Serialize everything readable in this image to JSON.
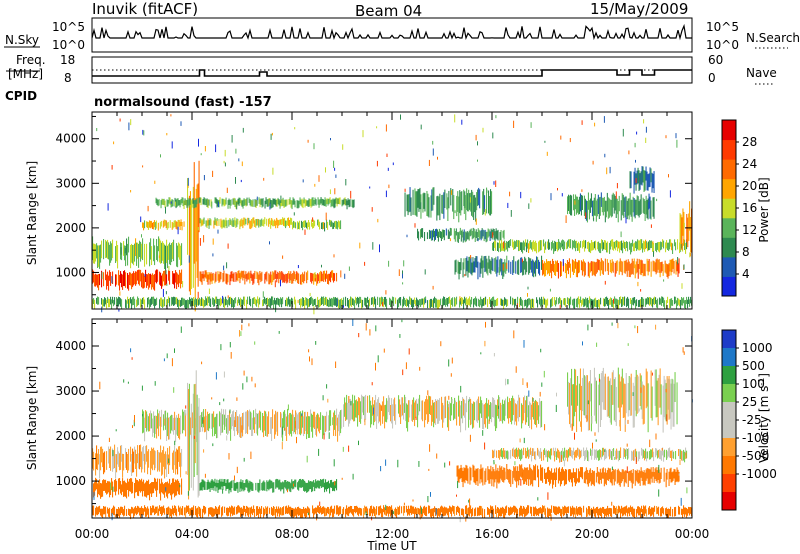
{
  "header": {
    "station": "Inuvik (fitACF)",
    "beam": "Beam 04",
    "date": "15/May/2009"
  },
  "top_panel": {
    "left_label": "N.Sky",
    "right_label": "N.Search",
    "left_ticks": [
      "10^5",
      "10^0"
    ],
    "right_ticks": [
      "10^5",
      "10^0"
    ]
  },
  "freq_panel": {
    "left_label_1": "Freq.",
    "left_label_2": "[MHz]",
    "right_label": "Nave",
    "left_ticks": [
      "18",
      "8"
    ],
    "right_ticks": [
      "60",
      "0"
    ]
  },
  "cpid": {
    "label": "CPID",
    "program": "normalsound (fast) -157"
  },
  "colors": {
    "power_scale": [
      "#1428e0",
      "#1e5ab4",
      "#2e8a50",
      "#5ab45a",
      "#c8dc2a",
      "#ffa500",
      "#ff6a00",
      "#ff3a00",
      "#e60000"
    ],
    "velocity_scale": [
      "#1e3cc8",
      "#1e78c8",
      "#2ea040",
      "#7ad050",
      "#c8c8c0",
      "#c8c8c0",
      "#ffa030",
      "#ff7800",
      "#ff4000",
      "#e60000"
    ]
  },
  "chart_data": [
    {
      "type": "heatmap",
      "name": "power",
      "ylabel": "Slant Range [km]",
      "xlabel": "Time UT",
      "x_ticks": [
        "00:00",
        "04:00",
        "08:00",
        "12:00",
        "16:00",
        "20:00",
        "00:00"
      ],
      "x_range_hours": [
        0,
        24
      ],
      "y_ticks": [
        1000,
        2000,
        3000,
        4000
      ],
      "ylim": [
        180,
        4600
      ],
      "colorbar_label": "Power [dB]",
      "colorbar_ticks": [
        4,
        8,
        12,
        16,
        20,
        24,
        28
      ],
      "colorbar_range": [
        0,
        32
      ],
      "echo_bands": [
        {
          "t0": 0.0,
          "t1": 3.6,
          "r0": 1150,
          "r1": 1700,
          "value": 14
        },
        {
          "t0": 0.0,
          "t1": 3.6,
          "r0": 620,
          "r1": 1000,
          "value": 26
        },
        {
          "t0": 2.0,
          "t1": 3.7,
          "r0": 1950,
          "r1": 2150,
          "value": 18
        },
        {
          "t0": 3.8,
          "t1": 4.3,
          "r0": 400,
          "r1": 3000,
          "value": 20
        },
        {
          "t0": 4.3,
          "t1": 8.0,
          "r0": 2000,
          "r1": 2200,
          "value": 16
        },
        {
          "t0": 4.3,
          "t1": 9.8,
          "r0": 750,
          "r1": 1000,
          "value": 24
        },
        {
          "t0": 2.5,
          "t1": 10.5,
          "r0": 2450,
          "r1": 2650,
          "value": 12
        },
        {
          "t0": 8.0,
          "t1": 10.0,
          "r0": 1950,
          "r1": 2150,
          "value": 14
        },
        {
          "t0": 12.5,
          "t1": 16.0,
          "r0": 2200,
          "r1": 2800,
          "value": 10
        },
        {
          "t0": 13.0,
          "t1": 16.5,
          "r0": 1700,
          "r1": 1950,
          "value": 10
        },
        {
          "t0": 14.5,
          "t1": 18.0,
          "r0": 900,
          "r1": 1300,
          "value": 8
        },
        {
          "t0": 16.0,
          "t1": 23.8,
          "r0": 1450,
          "r1": 1700,
          "value": 14
        },
        {
          "t0": 18.0,
          "t1": 23.5,
          "r0": 900,
          "r1": 1250,
          "value": 22
        },
        {
          "t0": 19.0,
          "t1": 22.5,
          "r0": 2200,
          "r1": 2700,
          "value": 10
        },
        {
          "t0": 21.5,
          "t1": 22.5,
          "r0": 2800,
          "r1": 3300,
          "value": 8
        },
        {
          "t0": 23.5,
          "t1": 24.0,
          "r0": 1400,
          "r1": 2400,
          "value": 20
        },
        {
          "t0": 0.0,
          "t1": 24.0,
          "r0": 200,
          "r1": 420,
          "value": 12
        }
      ]
    },
    {
      "type": "heatmap",
      "name": "velocity",
      "ylabel": "Slant Range [km]",
      "xlabel": "Time UT",
      "x_ticks": [
        "00:00",
        "04:00",
        "08:00",
        "12:00",
        "16:00",
        "20:00",
        "00:00"
      ],
      "x_range_hours": [
        0,
        24
      ],
      "y_ticks": [
        1000,
        2000,
        3000,
        4000
      ],
      "ylim": [
        180,
        4600
      ],
      "colorbar_label": "Velocity [m s^-1]",
      "colorbar_ticks": [
        "1000",
        "500",
        "100",
        "25",
        "-25",
        "-100",
        "-500",
        "-1000"
      ],
      "echo_bands": [
        {
          "t0": 0.0,
          "t1": 3.6,
          "r0": 1150,
          "r1": 1700,
          "value": -50
        },
        {
          "t0": 0.0,
          "t1": 3.6,
          "r0": 620,
          "r1": 1000,
          "value": -200
        },
        {
          "t0": 2.0,
          "t1": 10.0,
          "r0": 1950,
          "r1": 2500,
          "value": 0
        },
        {
          "t0": 3.8,
          "t1": 4.3,
          "r0": 400,
          "r1": 3000,
          "value": 0
        },
        {
          "t0": 4.3,
          "t1": 9.8,
          "r0": 750,
          "r1": 1000,
          "value": 200
        },
        {
          "t0": 10.0,
          "t1": 18.0,
          "r0": 2200,
          "r1": 2800,
          "value": 0
        },
        {
          "t0": 14.5,
          "t1": 18.0,
          "r0": 900,
          "r1": 1300,
          "value": -200
        },
        {
          "t0": 16.0,
          "t1": 23.8,
          "r0": 1450,
          "r1": 1700,
          "value": 0
        },
        {
          "t0": 18.0,
          "t1": 23.5,
          "r0": 900,
          "r1": 1250,
          "value": -300
        },
        {
          "t0": 19.0,
          "t1": 23.5,
          "r0": 2200,
          "r1": 3300,
          "value": 0
        },
        {
          "t0": 0.0,
          "t1": 24.0,
          "r0": 200,
          "r1": 420,
          "value": -150
        }
      ]
    }
  ]
}
